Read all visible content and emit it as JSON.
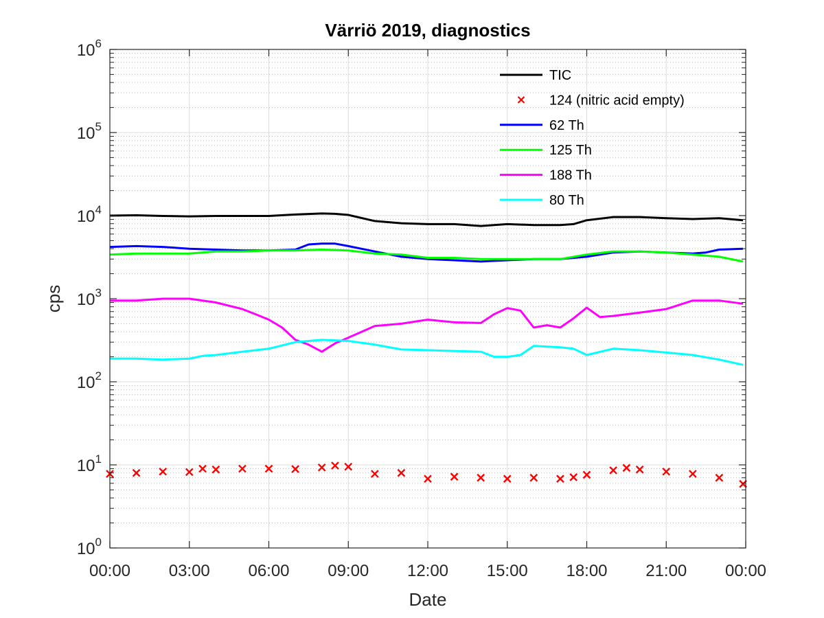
{
  "chart_data": {
    "type": "line",
    "title": "Värriö 2019, diagnostics",
    "xlabel": "Date",
    "ylabel": "cps",
    "x_ticks": [
      "00:00",
      "03:00",
      "06:00",
      "09:00",
      "12:00",
      "15:00",
      "18:00",
      "21:00",
      "00:00"
    ],
    "xlim_hours": [
      0,
      24
    ],
    "y_scale": "log",
    "ylim": [
      1,
      1000000
    ],
    "y_ticks": [
      {
        "value": 1,
        "base": "10",
        "exp": "0"
      },
      {
        "value": 10,
        "base": "10",
        "exp": "1"
      },
      {
        "value": 100,
        "base": "10",
        "exp": "2"
      },
      {
        "value": 1000,
        "base": "10",
        "exp": "3"
      },
      {
        "value": 10000,
        "base": "10",
        "exp": "4"
      },
      {
        "value": 100000,
        "base": "10",
        "exp": "5"
      },
      {
        "value": 1000000,
        "base": "10",
        "exp": "6"
      }
    ],
    "grid": true,
    "minor_grid": true,
    "legend_position": "top-right",
    "series": [
      {
        "name": "TIC",
        "color": "#000000",
        "style": "line",
        "x": [
          0,
          1,
          2,
          3,
          4,
          5,
          6,
          7,
          8,
          8.5,
          9,
          10,
          11,
          12,
          13,
          14,
          15,
          16,
          17,
          17.5,
          18,
          19,
          20,
          21,
          22,
          23,
          23.9
        ],
        "y": [
          10000,
          10100,
          9900,
          9800,
          9900,
          9900,
          9900,
          10300,
          10600,
          10500,
          10200,
          8600,
          8100,
          7900,
          7900,
          7500,
          7900,
          7700,
          7700,
          7900,
          8800,
          9600,
          9600,
          9300,
          9100,
          9300,
          8800
        ]
      },
      {
        "name": "124 (nitric acid empty)",
        "color": "#ff0000",
        "style": "marker",
        "x": [
          0,
          1,
          2,
          3,
          3.5,
          4,
          5,
          6,
          7,
          8,
          8.5,
          9,
          10,
          11,
          12,
          13,
          14,
          15,
          16,
          17,
          17.5,
          18,
          19,
          19.5,
          20,
          21,
          22,
          23,
          23.9
        ],
        "y": [
          7.8,
          8.0,
          8.3,
          8.2,
          9.0,
          8.8,
          9.0,
          9.0,
          8.9,
          9.3,
          9.8,
          9.5,
          7.8,
          8.0,
          6.8,
          7.2,
          7.0,
          6.8,
          7.0,
          6.8,
          7.1,
          7.6,
          8.6,
          9.2,
          8.8,
          8.3,
          7.8,
          7.0,
          5.9
        ]
      },
      {
        "name": "62 Th",
        "color": "#0000ff",
        "style": "line",
        "x": [
          0,
          1,
          2,
          3,
          4,
          5,
          6,
          7,
          7.5,
          8,
          8.5,
          9,
          10,
          11,
          12,
          13,
          14,
          15,
          16,
          17,
          18,
          19,
          20,
          21,
          22,
          22.5,
          23,
          23.9
        ],
        "y": [
          4200,
          4300,
          4200,
          4000,
          3900,
          3800,
          3800,
          3900,
          4500,
          4600,
          4600,
          4300,
          3700,
          3200,
          3000,
          2900,
          2800,
          2900,
          3000,
          3000,
          3200,
          3600,
          3700,
          3600,
          3500,
          3600,
          3900,
          4000
        ]
      },
      {
        "name": "125 Th",
        "color": "#00ff00",
        "style": "line",
        "x": [
          0,
          1,
          2,
          3,
          4,
          5,
          6,
          7,
          8,
          9,
          10,
          11,
          12,
          13,
          14,
          15,
          16,
          17,
          18,
          19,
          20,
          21,
          22,
          23,
          23.9
        ],
        "y": [
          3400,
          3500,
          3500,
          3500,
          3700,
          3700,
          3800,
          3800,
          3900,
          3800,
          3500,
          3400,
          3100,
          3100,
          3000,
          3000,
          3000,
          3000,
          3400,
          3700,
          3700,
          3600,
          3400,
          3200,
          2800
        ]
      },
      {
        "name": "188 Th",
        "color": "#ff00ff",
        "style": "line",
        "x": [
          0,
          1,
          2,
          3,
          4,
          5,
          5.5,
          6,
          6.5,
          7,
          7.5,
          8,
          8.5,
          9,
          9.5,
          10,
          11,
          12,
          13,
          14,
          14.5,
          15,
          15.5,
          16,
          16.5,
          17,
          17.5,
          18,
          18.5,
          19,
          20,
          21,
          22,
          23,
          23.9
        ],
        "y": [
          950,
          950,
          1000,
          1000,
          900,
          750,
          650,
          560,
          450,
          320,
          280,
          230,
          290,
          340,
          400,
          470,
          500,
          560,
          520,
          510,
          650,
          770,
          720,
          450,
          480,
          450,
          580,
          780,
          600,
          620,
          680,
          750,
          950,
          950,
          870
        ]
      },
      {
        "name": "80 Th",
        "color": "#00ffff",
        "style": "line",
        "x": [
          0,
          1,
          2,
          3,
          3.5,
          4,
          5,
          6,
          7,
          8,
          9,
          10,
          11,
          12,
          13,
          14,
          14.5,
          15,
          15.5,
          16,
          17,
          17.5,
          18,
          19,
          20,
          21,
          22,
          23,
          23.9
        ],
        "y": [
          190,
          190,
          185,
          190,
          205,
          210,
          230,
          250,
          300,
          320,
          310,
          280,
          245,
          240,
          235,
          230,
          200,
          200,
          210,
          270,
          260,
          250,
          210,
          250,
          240,
          225,
          210,
          185,
          160
        ]
      }
    ]
  }
}
